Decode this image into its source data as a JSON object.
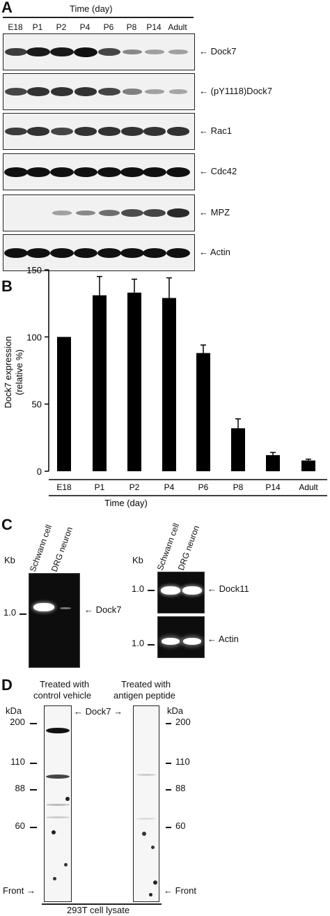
{
  "panelA": {
    "letter": "A",
    "time_label": "Time (day)",
    "lanes": [
      "E18",
      "P1",
      "P2",
      "P4",
      "P6",
      "P8",
      "P14",
      "Adult"
    ],
    "blots": [
      {
        "label": "Dock7",
        "intensity": [
          0.75,
          0.95,
          0.95,
          1.0,
          0.7,
          0.3,
          0.15,
          0.15
        ]
      },
      {
        "label": "(pY1118)Dock7",
        "intensity": [
          0.7,
          0.8,
          0.8,
          0.8,
          0.7,
          0.35,
          0.15,
          0.12
        ]
      },
      {
        "label": "Rac1",
        "intensity": [
          0.75,
          0.8,
          0.7,
          0.8,
          0.8,
          0.8,
          0.8,
          0.8
        ]
      },
      {
        "label": "Cdc42",
        "intensity": [
          1.0,
          1.0,
          1.0,
          1.0,
          1.0,
          1.0,
          1.0,
          1.0
        ]
      },
      {
        "label": "MPZ",
        "intensity": [
          0.0,
          0.0,
          0.15,
          0.3,
          0.45,
          0.65,
          0.7,
          0.85
        ]
      },
      {
        "label": "Actin",
        "intensity": [
          1.0,
          1.0,
          1.0,
          1.0,
          1.0,
          1.0,
          1.0,
          1.0
        ]
      }
    ]
  },
  "panelB": {
    "letter": "B",
    "chart_data": {
      "type": "bar",
      "categories": [
        "E18",
        "P1",
        "P2",
        "P4",
        "P6",
        "P8",
        "P14",
        "Adult"
      ],
      "values": [
        100,
        131,
        133,
        129,
        88,
        32,
        12,
        8
      ],
      "errors": [
        0,
        14,
        10,
        15,
        6,
        7,
        2,
        1
      ],
      "xlabel": "Time (day)",
      "ylabel_line1": "Dock7 expression",
      "ylabel_line2": "(relative %)",
      "ylim": [
        0,
        150
      ],
      "yticks": [
        "0",
        "50",
        "100",
        "150"
      ],
      "grid": false,
      "color": "#000000"
    }
  },
  "panelC": {
    "letter": "C",
    "kb_label": "Kb",
    "lanes": [
      "Schwann cell",
      "DRG neuron"
    ],
    "marker": "1.0",
    "left_band": "Dock7",
    "right_top_band": "Dock11",
    "right_bottom_band": "Actin"
  },
  "panelD": {
    "letter": "D",
    "left_title_1": "Treated with",
    "left_title_2": "control vehicle",
    "right_title_1": "Treated with",
    "right_title_2": "antigen peptide",
    "kda_label": "kDa",
    "markers": [
      "200",
      "110",
      "88",
      "60"
    ],
    "band_label": "Dock7",
    "front_label": "Front",
    "bottom_label": "293T cell lysate"
  }
}
